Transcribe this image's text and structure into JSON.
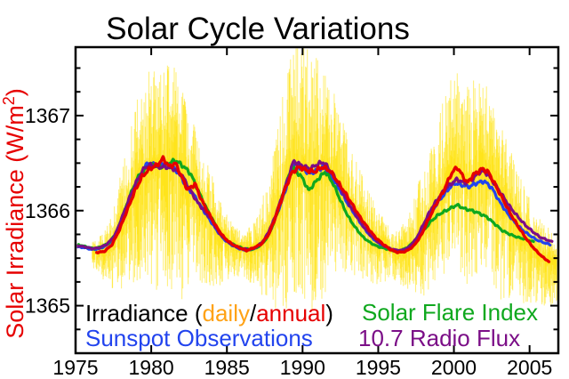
{
  "title": "Solar Cycle Variations",
  "colors": {
    "red": "#e60000",
    "yellow": "#ffe200",
    "daily_label": "#ffa215",
    "blue": "#2244ee",
    "green": "#0fa81e",
    "purple": "#7b0e87",
    "axis": "#000000",
    "background": "#ffffff"
  },
  "y_axis_label": {
    "main": "Solar Irradiance (W/m",
    "sup": "2",
    "close": ")"
  },
  "legend": {
    "line1_prefix": "Irradiance (",
    "line1_daily": "daily",
    "line1_slash": "/",
    "line1_annual": "annual",
    "line1_suffix": ")",
    "line2": "Sunspot Observations",
    "right1": "Solar Flare Index",
    "right2": "10.7 Radio Flux"
  },
  "chart_data": {
    "type": "line",
    "title": "Solar Cycle Variations",
    "xlabel": "",
    "ylabel": "Solar Irradiance (W/m2)",
    "grid": false,
    "legend_position": "bottom-inside",
    "x_axis": {
      "min": 1975.0,
      "max": 2006.9,
      "ticks": [
        1975,
        1980,
        1985,
        1990,
        1995,
        2000,
        2005
      ]
    },
    "y_axis": {
      "min": 1364.5,
      "max": 1367.72,
      "ticks": [
        1365,
        1366,
        1367
      ],
      "minor_step": 0.25
    },
    "series": [
      {
        "name": "Irradiance annual",
        "color_key": "red",
        "points": [
          [
            1976.4,
            1365.56
          ],
          [
            1976.9,
            1365.57
          ],
          [
            1977.4,
            1365.64
          ],
          [
            1977.9,
            1365.8
          ],
          [
            1978.4,
            1366.0
          ],
          [
            1978.9,
            1366.2
          ],
          [
            1979.4,
            1366.36
          ],
          [
            1979.9,
            1366.44
          ],
          [
            1980.4,
            1366.48
          ],
          [
            1980.8,
            1366.55
          ],
          [
            1981.2,
            1366.46
          ],
          [
            1981.6,
            1366.5
          ],
          [
            1982.0,
            1366.36
          ],
          [
            1982.4,
            1366.22
          ],
          [
            1982.9,
            1366.28
          ],
          [
            1983.3,
            1366.12
          ],
          [
            1983.8,
            1365.97
          ],
          [
            1984.3,
            1365.83
          ],
          [
            1984.8,
            1365.72
          ],
          [
            1985.3,
            1365.65
          ],
          [
            1985.8,
            1365.61
          ],
          [
            1986.3,
            1365.58
          ],
          [
            1986.8,
            1365.61
          ],
          [
            1987.3,
            1365.65
          ],
          [
            1987.8,
            1365.76
          ],
          [
            1988.3,
            1365.97
          ],
          [
            1988.8,
            1366.21
          ],
          [
            1989.3,
            1366.4
          ],
          [
            1989.8,
            1366.46
          ],
          [
            1990.3,
            1366.42
          ],
          [
            1990.8,
            1366.41
          ],
          [
            1991.3,
            1366.46
          ],
          [
            1991.8,
            1366.42
          ],
          [
            1992.3,
            1366.31
          ],
          [
            1992.8,
            1366.19
          ],
          [
            1993.3,
            1366.06
          ],
          [
            1993.8,
            1365.93
          ],
          [
            1994.3,
            1365.82
          ],
          [
            1994.8,
            1365.72
          ],
          [
            1995.3,
            1365.65
          ],
          [
            1995.8,
            1365.59
          ],
          [
            1996.3,
            1365.56
          ],
          [
            1996.8,
            1365.57
          ],
          [
            1997.3,
            1365.62
          ],
          [
            1997.8,
            1365.73
          ],
          [
            1998.3,
            1365.9
          ],
          [
            1998.8,
            1366.06
          ],
          [
            1999.3,
            1366.2
          ],
          [
            1999.8,
            1366.38
          ],
          [
            2000.2,
            1366.46
          ],
          [
            2000.6,
            1366.36
          ],
          [
            2000.9,
            1366.29
          ],
          [
            2001.3,
            1366.38
          ],
          [
            2001.9,
            1366.44
          ],
          [
            2002.3,
            1366.4
          ],
          [
            2002.8,
            1366.25
          ],
          [
            2003.3,
            1366.1
          ],
          [
            2003.8,
            1365.95
          ],
          [
            2004.3,
            1365.82
          ],
          [
            2004.8,
            1365.7
          ],
          [
            2005.3,
            1365.6
          ],
          [
            2005.8,
            1365.52
          ],
          [
            2006.3,
            1365.46
          ]
        ]
      },
      {
        "name": "Sunspot Observations",
        "color_key": "blue",
        "points": [
          [
            1975.1,
            1365.62
          ],
          [
            1975.6,
            1365.61
          ],
          [
            1976.1,
            1365.59
          ],
          [
            1976.6,
            1365.6
          ],
          [
            1977.1,
            1365.64
          ],
          [
            1977.6,
            1365.73
          ],
          [
            1978.1,
            1365.93
          ],
          [
            1978.6,
            1366.14
          ],
          [
            1979.1,
            1366.32
          ],
          [
            1979.6,
            1366.47
          ],
          [
            1979.9,
            1366.5
          ],
          [
            1980.3,
            1366.47
          ],
          [
            1980.8,
            1366.5
          ],
          [
            1981.3,
            1366.46
          ],
          [
            1981.8,
            1366.4
          ],
          [
            1982.3,
            1366.26
          ],
          [
            1982.8,
            1366.17
          ],
          [
            1983.3,
            1366.04
          ],
          [
            1983.8,
            1365.92
          ],
          [
            1984.3,
            1365.8
          ],
          [
            1984.8,
            1365.7
          ],
          [
            1985.3,
            1365.64
          ],
          [
            1985.8,
            1365.6
          ],
          [
            1986.3,
            1365.58
          ],
          [
            1986.8,
            1365.6
          ],
          [
            1987.3,
            1365.65
          ],
          [
            1987.8,
            1365.76
          ],
          [
            1988.3,
            1365.96
          ],
          [
            1988.8,
            1366.18
          ],
          [
            1989.2,
            1366.4
          ],
          [
            1989.5,
            1366.49
          ],
          [
            1990.0,
            1366.44
          ],
          [
            1990.5,
            1366.39
          ],
          [
            1991.0,
            1366.43
          ],
          [
            1991.4,
            1366.46
          ],
          [
            1992.0,
            1366.34
          ],
          [
            1992.5,
            1366.21
          ],
          [
            1993.0,
            1366.07
          ],
          [
            1993.5,
            1365.95
          ],
          [
            1994.0,
            1365.83
          ],
          [
            1994.5,
            1365.73
          ],
          [
            1995.0,
            1365.66
          ],
          [
            1995.5,
            1365.61
          ],
          [
            1996.0,
            1365.58
          ],
          [
            1996.5,
            1365.57
          ],
          [
            1997.0,
            1365.6
          ],
          [
            1997.5,
            1365.68
          ],
          [
            1998.0,
            1365.83
          ],
          [
            1998.5,
            1365.98
          ],
          [
            1999.0,
            1366.1
          ],
          [
            1999.5,
            1366.2
          ],
          [
            2000.0,
            1366.29
          ],
          [
            2000.5,
            1366.27
          ],
          [
            2001.0,
            1366.25
          ],
          [
            2001.5,
            1366.29
          ],
          [
            2002.0,
            1366.31
          ],
          [
            2002.5,
            1366.24
          ],
          [
            2003.0,
            1366.1
          ],
          [
            2003.5,
            1365.98
          ],
          [
            2004.0,
            1365.88
          ],
          [
            2004.5,
            1365.8
          ],
          [
            2005.0,
            1365.74
          ],
          [
            2005.5,
            1365.69
          ],
          [
            2006.0,
            1365.66
          ],
          [
            2006.4,
            1365.64
          ]
        ]
      },
      {
        "name": "Solar Flare Index",
        "color_key": "green",
        "points": [
          [
            1975.2,
            1365.64
          ],
          [
            1975.7,
            1365.62
          ],
          [
            1976.2,
            1365.6
          ],
          [
            1976.7,
            1365.62
          ],
          [
            1977.2,
            1365.66
          ],
          [
            1977.7,
            1365.77
          ],
          [
            1978.2,
            1365.98
          ],
          [
            1978.7,
            1366.2
          ],
          [
            1979.2,
            1366.37
          ],
          [
            1979.7,
            1366.45
          ],
          [
            1980.2,
            1366.48
          ],
          [
            1980.7,
            1366.46
          ],
          [
            1981.2,
            1366.5
          ],
          [
            1981.6,
            1366.53
          ],
          [
            1982.1,
            1366.47
          ],
          [
            1982.6,
            1366.39
          ],
          [
            1983.1,
            1366.21
          ],
          [
            1983.6,
            1366.04
          ],
          [
            1984.1,
            1365.89
          ],
          [
            1984.6,
            1365.75
          ],
          [
            1985.1,
            1365.67
          ],
          [
            1985.6,
            1365.63
          ],
          [
            1986.1,
            1365.6
          ],
          [
            1986.6,
            1365.59
          ],
          [
            1987.1,
            1365.62
          ],
          [
            1987.6,
            1365.7
          ],
          [
            1988.1,
            1365.87
          ],
          [
            1988.6,
            1366.12
          ],
          [
            1989.0,
            1366.33
          ],
          [
            1989.4,
            1366.45
          ],
          [
            1990.0,
            1366.34
          ],
          [
            1990.4,
            1366.21
          ],
          [
            1991.0,
            1366.33
          ],
          [
            1991.5,
            1366.41
          ],
          [
            1992.0,
            1366.29
          ],
          [
            1992.5,
            1366.11
          ],
          [
            1993.0,
            1365.94
          ],
          [
            1993.5,
            1365.82
          ],
          [
            1994.0,
            1365.72
          ],
          [
            1994.5,
            1365.66
          ],
          [
            1995.0,
            1365.62
          ],
          [
            1995.5,
            1365.6
          ],
          [
            1996.0,
            1365.58
          ],
          [
            1996.5,
            1365.58
          ],
          [
            1997.0,
            1365.62
          ],
          [
            1997.5,
            1365.7
          ],
          [
            1998.0,
            1365.79
          ],
          [
            1998.5,
            1365.89
          ],
          [
            1999.0,
            1365.96
          ],
          [
            1999.6,
            1366.01
          ],
          [
            2000.2,
            1366.06
          ],
          [
            2000.7,
            1366.02
          ],
          [
            2001.2,
            1366.0
          ],
          [
            2001.7,
            1365.97
          ],
          [
            2002.2,
            1365.93
          ],
          [
            2002.7,
            1365.86
          ],
          [
            2003.2,
            1365.79
          ],
          [
            2003.7,
            1365.75
          ],
          [
            2004.2,
            1365.72
          ],
          [
            2004.7,
            1365.7
          ],
          [
            2005.3,
            1365.67
          ]
        ]
      },
      {
        "name": "10.7 Radio Flux",
        "color_key": "purple",
        "points": [
          [
            1975.1,
            1365.63
          ],
          [
            1975.6,
            1365.62
          ],
          [
            1976.1,
            1365.6
          ],
          [
            1976.6,
            1365.61
          ],
          [
            1977.1,
            1365.65
          ],
          [
            1977.6,
            1365.74
          ],
          [
            1978.1,
            1365.94
          ],
          [
            1978.6,
            1366.15
          ],
          [
            1979.1,
            1366.33
          ],
          [
            1979.6,
            1366.46
          ],
          [
            1980.0,
            1366.48
          ],
          [
            1980.5,
            1366.46
          ],
          [
            1981.0,
            1366.46
          ],
          [
            1981.5,
            1366.44
          ],
          [
            1982.0,
            1366.38
          ],
          [
            1982.5,
            1366.24
          ],
          [
            1983.0,
            1366.1
          ],
          [
            1983.5,
            1366.0
          ],
          [
            1984.0,
            1365.9
          ],
          [
            1984.5,
            1365.76
          ],
          [
            1985.0,
            1365.68
          ],
          [
            1985.5,
            1365.63
          ],
          [
            1986.0,
            1365.6
          ],
          [
            1986.5,
            1365.59
          ],
          [
            1987.0,
            1365.62
          ],
          [
            1987.5,
            1365.7
          ],
          [
            1988.0,
            1365.86
          ],
          [
            1988.5,
            1366.08
          ],
          [
            1989.0,
            1366.32
          ],
          [
            1989.4,
            1366.52
          ],
          [
            1990.0,
            1366.47
          ],
          [
            1990.5,
            1366.44
          ],
          [
            1991.0,
            1366.49
          ],
          [
            1991.4,
            1366.51
          ],
          [
            1992.0,
            1366.38
          ],
          [
            1992.5,
            1366.24
          ],
          [
            1993.0,
            1366.09
          ],
          [
            1993.5,
            1365.96
          ],
          [
            1994.0,
            1365.84
          ],
          [
            1994.5,
            1365.74
          ],
          [
            1995.0,
            1365.67
          ],
          [
            1995.5,
            1365.62
          ],
          [
            1996.0,
            1365.59
          ],
          [
            1996.5,
            1365.58
          ],
          [
            1997.0,
            1365.61
          ],
          [
            1997.5,
            1365.7
          ],
          [
            1998.0,
            1365.86
          ],
          [
            1998.5,
            1366.02
          ],
          [
            1999.0,
            1366.14
          ],
          [
            1999.5,
            1366.24
          ],
          [
            2000.2,
            1366.33
          ],
          [
            2000.7,
            1366.29
          ],
          [
            2001.2,
            1366.33
          ],
          [
            2001.8,
            1366.42
          ],
          [
            2002.2,
            1366.39
          ],
          [
            2002.7,
            1366.28
          ],
          [
            2003.2,
            1366.16
          ],
          [
            2003.7,
            1366.04
          ],
          [
            2004.2,
            1365.94
          ],
          [
            2004.7,
            1365.85
          ],
          [
            2005.2,
            1365.78
          ],
          [
            2005.7,
            1365.72
          ],
          [
            2006.2,
            1365.69
          ],
          [
            2006.5,
            1365.67
          ]
        ]
      }
    ],
    "daily_envelope": {
      "name": "Irradiance daily",
      "color_key": "yellow",
      "x_start": 1976.1,
      "x_end": 2006.85,
      "x": [
        1976,
        1977,
        1978,
        1979,
        1980,
        1981,
        1982,
        1983,
        1984,
        1985,
        1986,
        1987,
        1988,
        1989,
        1990,
        1991,
        1992,
        1993,
        1994,
        1995,
        1996,
        1997,
        1998,
        1999,
        2000,
        2001,
        2002,
        2003,
        2004,
        2005,
        2006,
        2006.9
      ],
      "up": [
        0.1,
        0.2,
        0.55,
        0.9,
        1.05,
        1.05,
        0.95,
        0.6,
        0.45,
        0.25,
        0.15,
        0.3,
        0.75,
        1.25,
        1.3,
        1.2,
        0.9,
        0.6,
        0.45,
        0.3,
        0.18,
        0.35,
        0.7,
        0.9,
        1.0,
        1.0,
        0.9,
        0.8,
        0.6,
        0.45,
        0.35,
        0.3
      ],
      "down": [
        0.15,
        0.3,
        0.65,
        1.0,
        1.3,
        1.3,
        1.4,
        0.9,
        0.75,
        0.4,
        0.25,
        0.4,
        0.85,
        1.3,
        1.4,
        1.5,
        1.1,
        0.8,
        0.6,
        0.45,
        0.28,
        0.4,
        0.7,
        0.8,
        1.0,
        1.1,
        1.0,
        1.2,
        0.8,
        0.7,
        0.5,
        0.4
      ]
    }
  }
}
